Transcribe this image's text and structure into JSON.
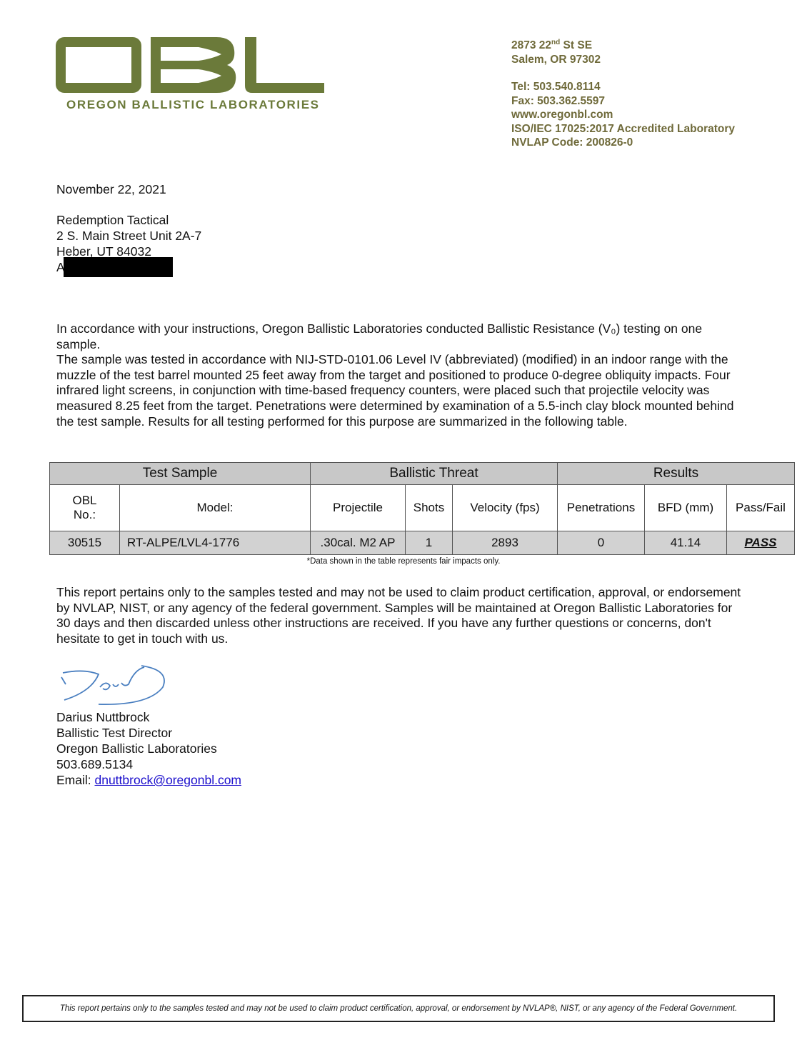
{
  "header": {
    "logo_text": "OBL",
    "logo_subtitle": "OREGON BALLISTIC LABORATORIES",
    "brand_color": "#6b7a3a",
    "address_line1_pre": "2873 22",
    "address_line1_sup": "nd",
    "address_line1_post": " St SE",
    "address_line2": "Salem, OR 97302",
    "tel": "Tel: 503.540.8114",
    "fax": "Fax: 503.362.5597",
    "website": "www.oregonbl.com",
    "accreditation": "ISO/IEC 17025:2017 Accredited Laboratory",
    "nvlap": "NVLAP Code: 200826-0"
  },
  "letter": {
    "date": "November 22, 2021",
    "recipient": [
      "Redemption Tactical",
      "2 S. Main Street Unit 2A-7",
      "Heber, UT 84032",
      "A"
    ],
    "paragraph1": "In accordance with your instructions, Oregon Ballistic Laboratories conducted Ballistic Resistance (V₀) testing on one sample.",
    "paragraph2": "The sample was tested in accordance with NIJ-STD-0101.06 Level IV (abbreviated) (modified) in an indoor range with the muzzle of the test barrel mounted 25 feet away from the target and positioned to produce 0-degree obliquity impacts. Four infrared light screens, in conjunction with time-based frequency counters, were placed such that projectile velocity was measured 8.25 feet from the target. Penetrations were determined by examination of a 5.5-inch clay block mounted behind the test sample. Results for all testing performed for this purpose are summarized in the following table.",
    "paragraph3": "This report pertains only to the samples tested and may not be used to claim product certification, approval, or endorsement by NVLAP, NIST, or any agency of the federal government. Samples will be maintained at Oregon Ballistic Laboratories for 30 days and then discarded unless other instructions are received. If you have any further questions or concerns, don't hesitate to get in touch with us."
  },
  "table": {
    "groups": [
      "Test Sample",
      "Ballistic Threat",
      "Results"
    ],
    "columns": [
      "OBL No.:",
      "Model:",
      "Projectile",
      "Shots",
      "Velocity (fps)",
      "Penetrations",
      "BFD (mm)",
      "Pass/Fail"
    ],
    "rows": [
      [
        "30515",
        "RT-ALPE/LVL4-1776",
        ".30cal. M2 AP",
        "1",
        "2893",
        "0",
        "41.14",
        "PASS"
      ]
    ],
    "footnote": "*Data shown in the table represents fair impacts only."
  },
  "signature": {
    "name": "Darius Nuttbrock",
    "title": "Ballistic Test Director",
    "org": "Oregon Ballistic Laboratories",
    "phone": "503.689.5134",
    "email_label": "Email: ",
    "email": "dnuttbrock@oregonbl.com"
  },
  "footer": "This report pertains only to the samples tested and may not be used to claim product certification, approval, or endorsement by NVLAP®, NIST, or any agency of the Federal Government."
}
